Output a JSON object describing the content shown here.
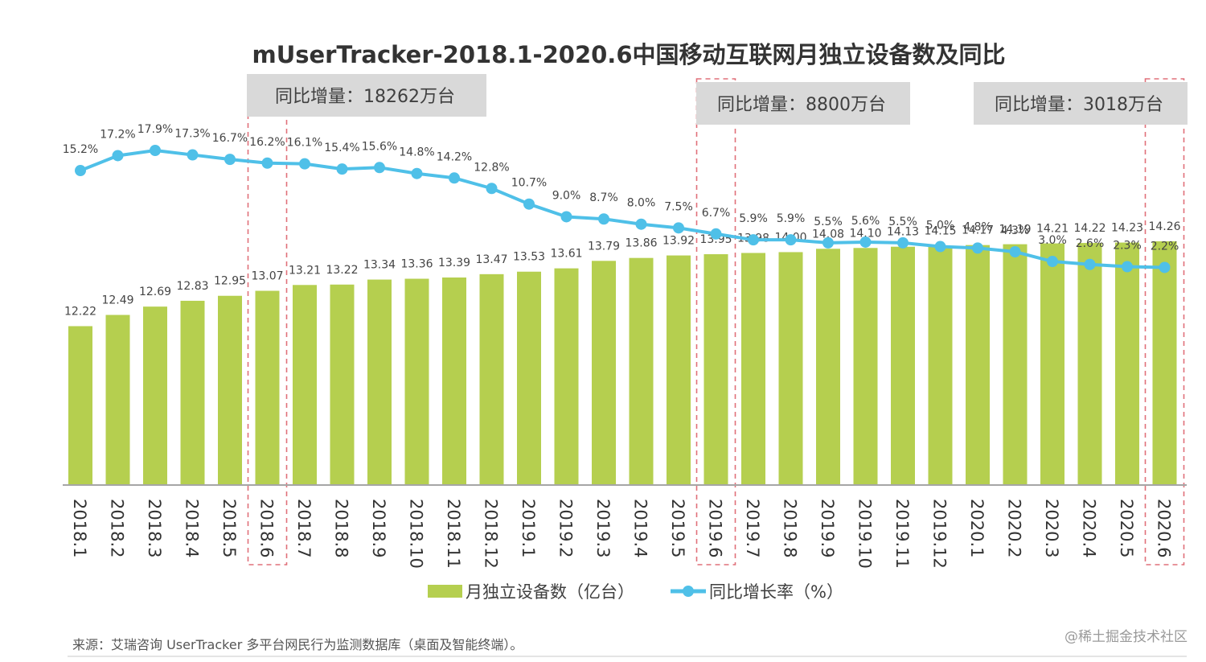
{
  "chart_data": {
    "type": "bar",
    "title": "mUserTracker-2018.1-2020.6中国移动互联网月独立设备数及同比",
    "categories": [
      "2018.1",
      "2018.2",
      "2018.3",
      "2018.4",
      "2018.5",
      "2018.6",
      "2018.7",
      "2018.8",
      "2018.9",
      "2018.10",
      "2018.11",
      "2018.12",
      "2019.1",
      "2019.2",
      "2019.3",
      "2019.4",
      "2019.5",
      "2019.6",
      "2019.7",
      "2019.8",
      "2019.9",
      "2019.10",
      "2019.11",
      "2019.12",
      "2020.1",
      "2020.2",
      "2020.3",
      "2020.4",
      "2020.5",
      "2020.6"
    ],
    "series": [
      {
        "name": "月独立设备数（亿台）",
        "type": "bar",
        "color": "#b5cf4f",
        "values": [
          12.22,
          12.49,
          12.69,
          12.83,
          12.95,
          13.07,
          13.21,
          13.22,
          13.34,
          13.36,
          13.39,
          13.47,
          13.53,
          13.61,
          13.79,
          13.86,
          13.92,
          13.95,
          13.98,
          14.0,
          14.08,
          14.1,
          14.13,
          14.15,
          14.17,
          14.19,
          14.21,
          14.22,
          14.23,
          14.26
        ],
        "labels": [
          "12.22",
          "12.49",
          "12.69",
          "12.83",
          "12.95",
          "13.07",
          "13.21",
          "13.22",
          "13.34",
          "13.36",
          "13.39",
          "13.47",
          "13.53",
          "13.61",
          "13.79",
          "13.86",
          "13.92",
          "13.95",
          "13.98",
          "14.00",
          "14.08",
          "14.10",
          "14.13",
          "14.15",
          "14.17",
          "14.19",
          "14.21",
          "14.22",
          "14.23",
          "14.26"
        ]
      },
      {
        "name": "同比增长率（%）",
        "type": "line",
        "color": "#4fc0e8",
        "values": [
          15.2,
          17.2,
          17.9,
          17.3,
          16.7,
          16.2,
          16.1,
          15.4,
          15.6,
          14.8,
          14.2,
          12.8,
          10.7,
          9.0,
          8.7,
          8.0,
          7.5,
          6.7,
          5.9,
          5.9,
          5.5,
          5.6,
          5.5,
          5.0,
          4.8,
          4.3,
          3.0,
          2.6,
          2.3,
          2.2
        ],
        "labels": [
          "15.2%",
          "17.2%",
          "17.9%",
          "17.3%",
          "16.7%",
          "16.2%",
          "16.1%",
          "15.4%",
          "15.6%",
          "14.8%",
          "14.2%",
          "12.8%",
          "10.7%",
          "9.0%",
          "8.7%",
          "8.0%",
          "7.5%",
          "6.7%",
          "5.9%",
          "5.9%",
          "5.5%",
          "5.6%",
          "5.5%",
          "5.0%",
          "4.8%",
          "4.3%",
          "3.0%",
          "2.6%",
          "2.3%",
          "2.2%"
        ]
      }
    ],
    "bar_axis_range": [
      8.4,
      14.26
    ],
    "line_axis_range": [
      -27,
      17.9
    ],
    "grid": false,
    "legend_position": "bottom",
    "highlighted_categories": [
      "2018.6",
      "2019.6",
      "2020.6"
    ],
    "annotations": [
      {
        "text": "同比增量：18262万台",
        "category": "2018.6"
      },
      {
        "text": "同比增量：8800万台",
        "category": "2019.6"
      },
      {
        "text": "同比增量：3018万台",
        "category": "2020.6"
      }
    ]
  },
  "footer": {
    "source": "来源：艾瑞咨询 UserTracker 多平台网民行为监测数据库（桌面及智能终端）。",
    "watermark": "@稀土掘金技术社区"
  }
}
